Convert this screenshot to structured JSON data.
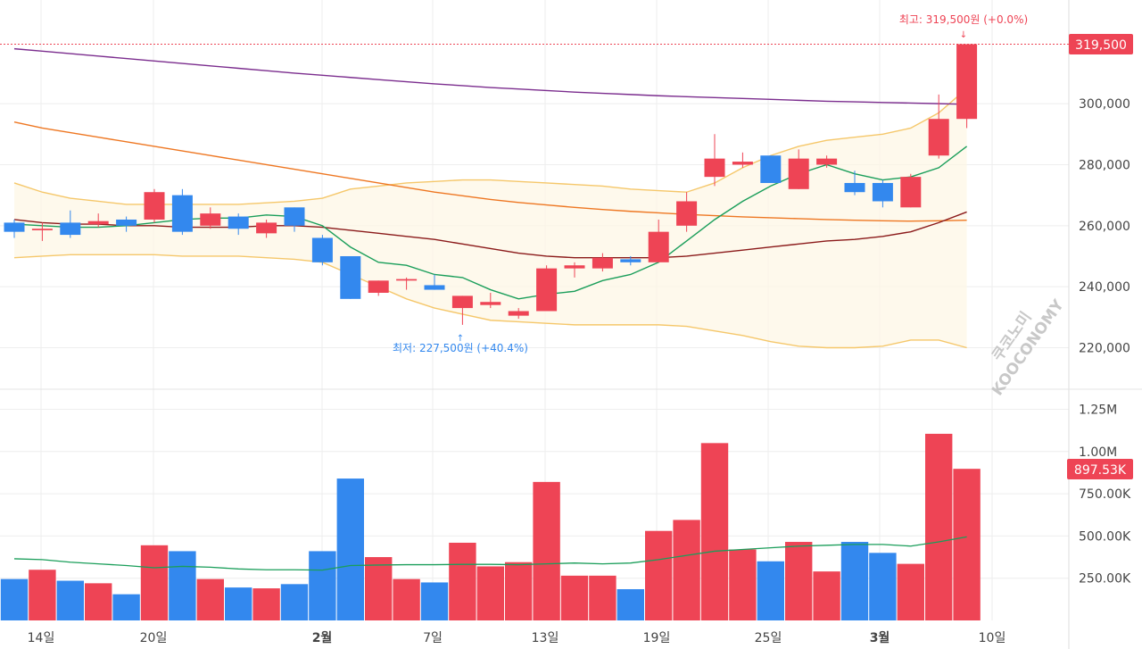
{
  "colors": {
    "up": "#ee4455",
    "down": "#3388ee",
    "ma5": "#1a9e5a",
    "ma20": "#8b1a1a",
    "ma60": "#ee7722",
    "ma120": "#7b2d8e",
    "bollinger": "#f5c76a",
    "volume_ma": "#1a9e5a",
    "grid": "#eeeeee"
  },
  "watermark": {
    "line1": "쿠코노미",
    "line2": "KOOCONOMY"
  },
  "price_axis": {
    "ticks": [
      "300,000",
      "280,000",
      "260,000",
      "240,000",
      "220,000"
    ],
    "current_label": "319,500"
  },
  "volume_axis": {
    "ticks": [
      "1.25M",
      "1.00M",
      "750.00K",
      "500.00K",
      "250.00K"
    ],
    "current_label": "897.53K"
  },
  "x_axis": {
    "labels": [
      {
        "text": "14일",
        "bold": false
      },
      {
        "text": "20일",
        "bold": false
      },
      {
        "text": "2월",
        "bold": true
      },
      {
        "text": "7일",
        "bold": false
      },
      {
        "text": "13일",
        "bold": false
      },
      {
        "text": "19일",
        "bold": false
      },
      {
        "text": "25일",
        "bold": false
      },
      {
        "text": "3월",
        "bold": true
      },
      {
        "text": "10일",
        "bold": false
      }
    ]
  },
  "annotations": {
    "high": "최고: 319,500원 (+0.0%)",
    "low": "최저: 227,500원 (+40.4%)"
  },
  "chart_data": {
    "type": "candlestick",
    "ylim": [
      198000,
      327000
    ],
    "volume_ylim": [
      0,
      1425000
    ],
    "candles": [
      {
        "o": 261000,
        "h": 262000,
        "l": 256000,
        "c": 258000,
        "v": 245000
      },
      {
        "o": 258500,
        "h": 261000,
        "l": 255000,
        "c": 259000,
        "v": 300000
      },
      {
        "o": 261000,
        "h": 265000,
        "l": 256000,
        "c": 257000,
        "v": 235000
      },
      {
        "o": 260500,
        "h": 264000,
        "l": 259500,
        "c": 261500,
        "v": 220000
      },
      {
        "o": 262000,
        "h": 263000,
        "l": 258000,
        "c": 260000,
        "v": 155000
      },
      {
        "o": 262000,
        "h": 272000,
        "l": 261000,
        "c": 271000,
        "v": 445000
      },
      {
        "o": 270000,
        "h": 272000,
        "l": 257000,
        "c": 258000,
        "v": 410000
      },
      {
        "o": 260000,
        "h": 266000,
        "l": 259000,
        "c": 264000,
        "v": 245000
      },
      {
        "o": 263000,
        "h": 264000,
        "l": 257000,
        "c": 259000,
        "v": 195000
      },
      {
        "o": 257500,
        "h": 262000,
        "l": 256000,
        "c": 261000,
        "v": 190000
      },
      {
        "o": 266000,
        "h": 266000,
        "l": 258000,
        "c": 260000,
        "v": 215000
      },
      {
        "o": 256000,
        "h": 257000,
        "l": 247000,
        "c": 248000,
        "v": 410000
      },
      {
        "o": 250000,
        "h": 250000,
        "l": 236000,
        "c": 236000,
        "v": 840000
      },
      {
        "o": 238000,
        "h": 242000,
        "l": 237000,
        "c": 242000,
        "v": 375000
      },
      {
        "o": 242000,
        "h": 243000,
        "l": 239000,
        "c": 242500,
        "v": 245000
      },
      {
        "o": 240500,
        "h": 244000,
        "l": 239000,
        "c": 239000,
        "v": 225000
      },
      {
        "o": 233000,
        "h": 237000,
        "l": 227500,
        "c": 237000,
        "v": 460000
      },
      {
        "o": 234000,
        "h": 238000,
        "l": 233000,
        "c": 235000,
        "v": 320000
      },
      {
        "o": 230500,
        "h": 233000,
        "l": 229500,
        "c": 232000,
        "v": 345000
      },
      {
        "o": 232000,
        "h": 247000,
        "l": 232000,
        "c": 246000,
        "v": 820000
      },
      {
        "o": 246000,
        "h": 248000,
        "l": 243000,
        "c": 247000,
        "v": 265000
      },
      {
        "o": 246000,
        "h": 251000,
        "l": 245000,
        "c": 249500,
        "v": 265000
      },
      {
        "o": 249000,
        "h": 250000,
        "l": 247000,
        "c": 248000,
        "v": 185000
      },
      {
        "o": 248000,
        "h": 262000,
        "l": 248000,
        "c": 258000,
        "v": 530000
      },
      {
        "o": 260000,
        "h": 271000,
        "l": 258000,
        "c": 268000,
        "v": 595000
      },
      {
        "o": 276000,
        "h": 290000,
        "l": 273000,
        "c": 282000,
        "v": 1050000
      },
      {
        "o": 280000,
        "h": 284000,
        "l": 279000,
        "c": 281000,
        "v": 420000
      },
      {
        "o": 283000,
        "h": 283000,
        "l": 274000,
        "c": 274000,
        "v": 350000
      },
      {
        "o": 272000,
        "h": 285000,
        "l": 272000,
        "c": 282000,
        "v": 465000
      },
      {
        "o": 280000,
        "h": 283000,
        "l": 279000,
        "c": 282000,
        "v": 290000
      },
      {
        "o": 274000,
        "h": 278000,
        "l": 270000,
        "c": 271000,
        "v": 465000
      },
      {
        "o": 274000,
        "h": 275000,
        "l": 266000,
        "c": 268000,
        "v": 400000
      },
      {
        "o": 266000,
        "h": 277000,
        "l": 266000,
        "c": 276000,
        "v": 335000
      },
      {
        "o": 283000,
        "h": 303000,
        "l": 282000,
        "c": 295000,
        "v": 1105000
      },
      {
        "o": 295000,
        "h": 319500,
        "l": 292000,
        "c": 319500,
        "v": 897530
      }
    ],
    "ma5": [
      260500,
      260000,
      259500,
      259500,
      260000,
      261000,
      262000,
      262500,
      262500,
      263500,
      263000,
      260000,
      253000,
      248000,
      247000,
      244000,
      243000,
      239000,
      236000,
      237500,
      238500,
      242000,
      244000,
      248000,
      255000,
      262000,
      268000,
      273000,
      277000,
      280000,
      277000,
      275000,
      276000,
      279000,
      286000
    ],
    "ma20": [
      262000,
      261000,
      260500,
      260500,
      260000,
      260000,
      259500,
      259500,
      259500,
      260000,
      260000,
      259500,
      258500,
      257500,
      256500,
      255500,
      254000,
      252500,
      251000,
      250000,
      249500,
      249500,
      249500,
      249500,
      250000,
      251000,
      252000,
      253000,
      254000,
      255000,
      255500,
      256500,
      258000,
      261000,
      264500
    ],
    "ma60": [
      294000,
      292000,
      290500,
      289000,
      287500,
      286000,
      284500,
      283000,
      281500,
      280000,
      278500,
      277000,
      275500,
      274000,
      272500,
      271000,
      269800,
      268600,
      267600,
      266800,
      266000,
      265300,
      264700,
      264200,
      263700,
      263300,
      262900,
      262600,
      262300,
      262000,
      261800,
      261600,
      261500,
      261600,
      261800
    ],
    "ma120": [
      318000,
      317200,
      316400,
      315600,
      314800,
      314000,
      313200,
      312400,
      311600,
      310800,
      310000,
      309300,
      308600,
      307900,
      307200,
      306500,
      305900,
      305300,
      304800,
      304300,
      303800,
      303400,
      303000,
      302600,
      302300,
      302000,
      301700,
      301400,
      301100,
      300800,
      300600,
      300400,
      300200,
      300000,
      299800
    ],
    "bb_upper": [
      274000,
      271000,
      269000,
      268000,
      267000,
      267000,
      267000,
      267000,
      267000,
      267500,
      268000,
      269000,
      272000,
      273000,
      274000,
      274500,
      275000,
      275000,
      274500,
      274000,
      273500,
      273000,
      272000,
      271500,
      271000,
      274000,
      279000,
      283000,
      286000,
      288000,
      289000,
      290000,
      292000,
      297000,
      305000
    ],
    "bb_lower": [
      249500,
      250000,
      250500,
      250500,
      250500,
      250500,
      250000,
      250000,
      250000,
      249500,
      249000,
      248000,
      244000,
      240000,
      236000,
      233000,
      231000,
      229000,
      228500,
      228000,
      227500,
      227500,
      227500,
      227500,
      227000,
      225500,
      224000,
      222000,
      220500,
      220000,
      220000,
      220500,
      222500,
      222500,
      220000
    ],
    "volume_ma": [
      365000,
      360000,
      345000,
      335000,
      325000,
      312000,
      320000,
      315000,
      305000,
      300000,
      300000,
      298000,
      325000,
      328000,
      330000,
      330000,
      332000,
      332000,
      330000,
      335000,
      340000,
      335000,
      340000,
      360000,
      385000,
      410000,
      420000,
      430000,
      440000,
      445000,
      450000,
      450000,
      440000,
      465000,
      495000
    ]
  }
}
